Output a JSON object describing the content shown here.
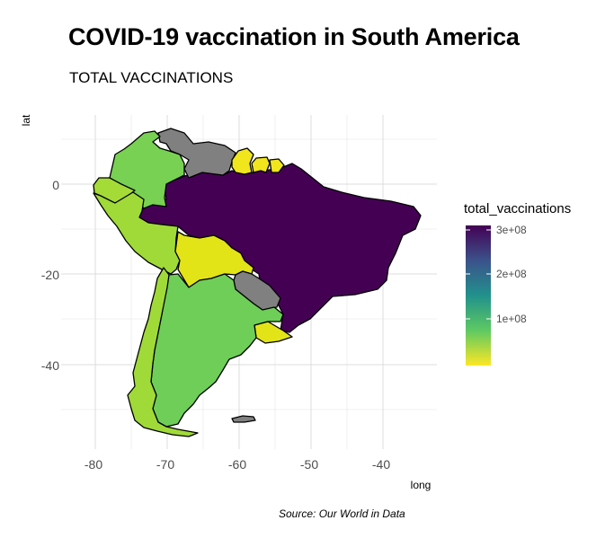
{
  "title": "COVID-19 vaccination in South America",
  "subtitle": "TOTAL VACCINATIONS",
  "caption": "Source: Our World in Data",
  "axes": {
    "x_label": "long",
    "y_label": "lat",
    "x_ticks": [
      "-80",
      "-70",
      "-60",
      "-50",
      "-40"
    ],
    "y_ticks": [
      "0",
      "-20",
      "-40"
    ]
  },
  "legend": {
    "title": "total_vaccinations",
    "breaks": [
      "3e+08",
      "2e+08",
      "1e+08"
    ],
    "colors": [
      "#440154",
      "#3b528b",
      "#21918c",
      "#5ec962",
      "#fde725"
    ]
  },
  "chart_data": {
    "type": "choropleth",
    "title": "COVID-19 vaccination in South America",
    "subtitle": "TOTAL VACCINATIONS",
    "xlabel": "long",
    "ylabel": "lat",
    "xlim": [
      -82,
      -34
    ],
    "ylim": [
      -57,
      13
    ],
    "fill_variable": "total_vaccinations",
    "legend_range": [
      0,
      330000000
    ],
    "countries": [
      {
        "name": "Brazil",
        "total_vaccinations": 330000000,
        "color": "#440154"
      },
      {
        "name": "Colombia",
        "total_vaccinations": 55000000,
        "color": "#78d152"
      },
      {
        "name": "Ecuador",
        "total_vaccinations": 25000000,
        "color": "#a5db36"
      },
      {
        "name": "Peru",
        "total_vaccinations": 35000000,
        "color": "#a0da39"
      },
      {
        "name": "Argentina",
        "total_vaccinations": 60000000,
        "color": "#6ece58"
      },
      {
        "name": "Chile",
        "total_vaccinations": 38000000,
        "color": "#a0da39"
      },
      {
        "name": "Bolivia",
        "total_vaccinations": 7000000,
        "color": "#e3e418"
      },
      {
        "name": "Uruguay",
        "total_vaccinations": 8000000,
        "color": "#e3e418"
      },
      {
        "name": "Guyana",
        "total_vaccinations": 500000,
        "color": "#f1e51d"
      },
      {
        "name": "Suriname",
        "total_vaccinations": 400000,
        "color": "#f1e51d"
      },
      {
        "name": "French Guiana",
        "total_vaccinations": 200000,
        "color": "#f1e51d"
      },
      {
        "name": "Venezuela",
        "total_vaccinations": null,
        "color": "#808080"
      },
      {
        "name": "Paraguay",
        "total_vaccinations": null,
        "color": "#808080"
      }
    ]
  }
}
